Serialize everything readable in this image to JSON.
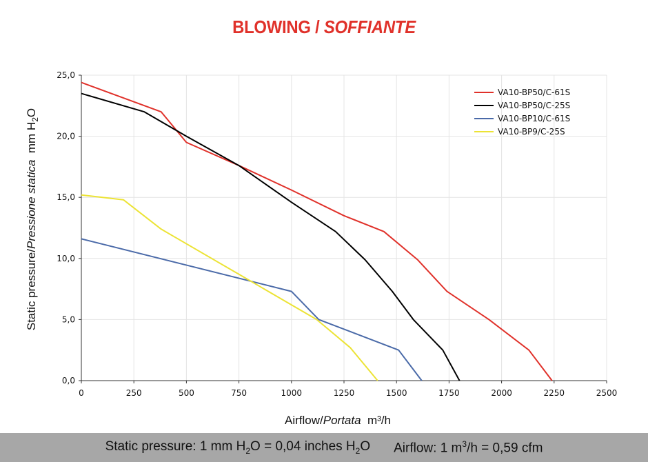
{
  "chart_data": {
    "type": "line",
    "title": "BLOWING",
    "title_italic": "SOFFIANTE",
    "title_sep": " / ",
    "xlabel": "Airflow",
    "xlabel_italic": "Portata",
    "xunit": "m³/h",
    "ylabel": "Static pressure",
    "ylabel_italic": "Pressione statica",
    "yunit_main": "mm  H",
    "yunit_sub": "2",
    "yunit_tail": "O",
    "xlim": [
      0,
      2500
    ],
    "ylim": [
      0,
      25
    ],
    "x_ticks": [
      0,
      250,
      500,
      750,
      1000,
      1250,
      1500,
      1750,
      2000,
      2250,
      2500
    ],
    "x_tick_labels": [
      "0",
      "250",
      "500",
      "750",
      "1000",
      "1250",
      "1500",
      "1750",
      "2000",
      "2250",
      "2500"
    ],
    "y_ticks": [
      0,
      5,
      10,
      15,
      20,
      25
    ],
    "y_tick_labels": [
      "0,0",
      "5,0",
      "10,0",
      "15,0",
      "20,0",
      "25,0"
    ],
    "grid": true,
    "legend_position": "top-right",
    "series": [
      {
        "name": "VA10-BP50/C-61S",
        "color": "#e0312a",
        "points": [
          [
            0,
            24.4
          ],
          [
            380,
            22.0
          ],
          [
            500,
            19.5
          ],
          [
            750,
            17.6
          ],
          [
            1000,
            15.6
          ],
          [
            1250,
            13.5
          ],
          [
            1440,
            12.2
          ],
          [
            1600,
            9.9
          ],
          [
            1740,
            7.3
          ],
          [
            1940,
            5.0
          ],
          [
            2130,
            2.5
          ],
          [
            2240,
            0.0
          ]
        ]
      },
      {
        "name": "VA10-BP50/C-25S",
        "color": "#000000",
        "points": [
          [
            0,
            23.5
          ],
          [
            300,
            22.0
          ],
          [
            500,
            20.0
          ],
          [
            750,
            17.6
          ],
          [
            1000,
            14.6
          ],
          [
            1210,
            12.2
          ],
          [
            1350,
            9.9
          ],
          [
            1480,
            7.3
          ],
          [
            1580,
            5.0
          ],
          [
            1720,
            2.5
          ],
          [
            1800,
            0.0
          ]
        ]
      },
      {
        "name": "VA10-BP10/C-61S",
        "color": "#4a6aa8",
        "points": [
          [
            0,
            11.6
          ],
          [
            1000,
            7.3
          ],
          [
            1130,
            5.0
          ],
          [
            1510,
            2.5
          ],
          [
            1620,
            0.0
          ]
        ]
      },
      {
        "name": "VA10-BP9/C-25S",
        "color": "#ece335",
        "points": [
          [
            0,
            15.2
          ],
          [
            200,
            14.8
          ],
          [
            380,
            12.4
          ],
          [
            750,
            8.7
          ],
          [
            1000,
            6.2
          ],
          [
            1120,
            5.0
          ],
          [
            1280,
            2.7
          ],
          [
            1410,
            0.0
          ]
        ]
      }
    ]
  },
  "footer": {
    "pressure_label": "Static pressure: 1 mm H",
    "pressure_sub": "2",
    "pressure_mid": "O = 0,04 inches H",
    "pressure_sub2": "2",
    "pressure_end": "O",
    "airflow_label": "Airflow: 1 m",
    "airflow_sup": "3",
    "airflow_end": "/h = 0,59 cfm"
  }
}
